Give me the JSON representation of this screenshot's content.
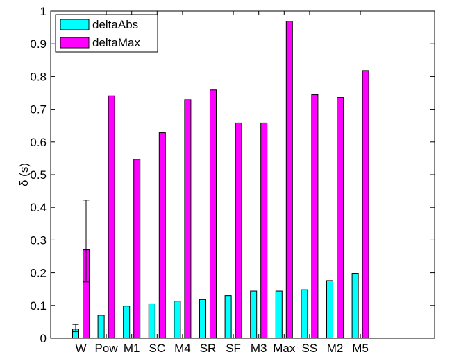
{
  "chart_data": {
    "type": "bar",
    "ylabel": "δ (s)",
    "ylim": [
      0,
      1
    ],
    "yticks": [
      0,
      0.1,
      0.2,
      0.3,
      0.4,
      0.5,
      0.6,
      0.7,
      0.8,
      0.9,
      1
    ],
    "ytick_labels": [
      "0",
      "0.1",
      "0.2",
      "0.3",
      "0.4",
      "0.5",
      "0.6",
      "0.7",
      "0.8",
      "0.9",
      "1"
    ],
    "categories": [
      "W",
      "Pow",
      "M1",
      "SC",
      "M4",
      "SR",
      "SF",
      "M3",
      "Max",
      "SS",
      "M2",
      "M5"
    ],
    "series": [
      {
        "name": "deltaAbs",
        "color": "#00ffff",
        "values": [
          0.028,
          0.07,
          0.098,
          0.105,
          0.113,
          0.118,
          0.13,
          0.144,
          0.144,
          0.148,
          0.176,
          0.198
        ]
      },
      {
        "name": "deltaMax",
        "color": "#ff00ff",
        "values": [
          0.27,
          0.741,
          0.547,
          0.628,
          0.729,
          0.759,
          0.658,
          0.658,
          0.969,
          0.745,
          0.736,
          0.818
        ]
      }
    ],
    "error_bars": [
      {
        "series": "deltaAbs",
        "category": "W",
        "low": 0.02,
        "high": 0.042
      },
      {
        "series": "deltaMax",
        "category": "W",
        "low": 0.172,
        "high": 0.422
      }
    ],
    "legend": {
      "placement": "top-left",
      "entries": [
        "deltaAbs",
        "deltaMax"
      ]
    },
    "grid": false,
    "bar_stroke": "#000000"
  }
}
